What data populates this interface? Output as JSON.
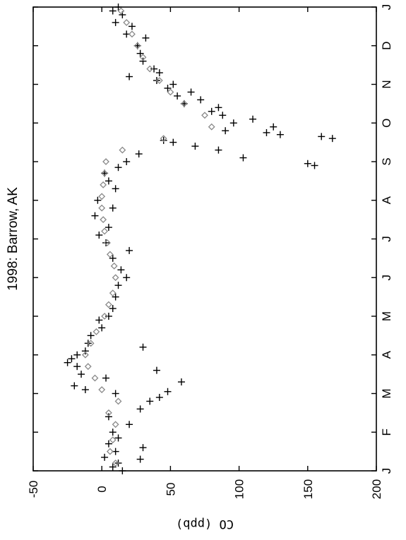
{
  "chart_data": {
    "type": "scatter",
    "title": "1998: Barrow, AK",
    "ylabel": "CO (ppb)",
    "xlabel": "",
    "orientation": "rotated-90-clockwise",
    "months": [
      "J",
      "F",
      "M",
      "A",
      "M",
      "J",
      "J",
      "A",
      "S",
      "O",
      "N",
      "D",
      "J"
    ],
    "ylim": [
      -50,
      200
    ],
    "yticks": [
      -50,
      0,
      50,
      100,
      150,
      200
    ],
    "grid": false,
    "legend": "none",
    "series": [
      {
        "marker": "plus",
        "color": "#000000",
        "points": [
          [
            0.0,
            15
          ],
          [
            0.1,
            8
          ],
          [
            0.2,
            12
          ],
          [
            0.3,
            28
          ],
          [
            0.35,
            2
          ],
          [
            0.5,
            10
          ],
          [
            0.6,
            30
          ],
          [
            0.7,
            5
          ],
          [
            0.85,
            12
          ],
          [
            1.0,
            8
          ],
          [
            1.2,
            20
          ],
          [
            1.4,
            5
          ],
          [
            1.6,
            28
          ],
          [
            1.8,
            35
          ],
          [
            1.9,
            42
          ],
          [
            2.0,
            10
          ],
          [
            2.05,
            48
          ],
          [
            2.1,
            -12
          ],
          [
            2.2,
            -20
          ],
          [
            2.3,
            58
          ],
          [
            2.4,
            3
          ],
          [
            2.5,
            -15
          ],
          [
            2.6,
            40
          ],
          [
            2.7,
            -18
          ],
          [
            2.8,
            -25
          ],
          [
            2.9,
            -22
          ],
          [
            3.0,
            -18
          ],
          [
            3.1,
            -12
          ],
          [
            3.2,
            30
          ],
          [
            3.3,
            -10
          ],
          [
            3.5,
            -8
          ],
          [
            3.7,
            0
          ],
          [
            3.9,
            -2
          ],
          [
            4.0,
            5
          ],
          [
            4.2,
            8
          ],
          [
            4.5,
            10
          ],
          [
            4.8,
            12
          ],
          [
            5.0,
            18
          ],
          [
            5.2,
            14
          ],
          [
            5.5,
            8
          ],
          [
            5.7,
            20
          ],
          [
            5.9,
            3
          ],
          [
            6.1,
            -2
          ],
          [
            6.3,
            5
          ],
          [
            6.6,
            -5
          ],
          [
            6.8,
            8
          ],
          [
            7.0,
            -3
          ],
          [
            7.3,
            10
          ],
          [
            7.5,
            5
          ],
          [
            7.7,
            2
          ],
          [
            7.85,
            12
          ],
          [
            7.9,
            155
          ],
          [
            7.95,
            150
          ],
          [
            8.0,
            18
          ],
          [
            8.1,
            103
          ],
          [
            8.2,
            27
          ],
          [
            8.3,
            85
          ],
          [
            8.4,
            68
          ],
          [
            8.5,
            52
          ],
          [
            8.55,
            45
          ],
          [
            8.6,
            168
          ],
          [
            8.65,
            160
          ],
          [
            8.7,
            130
          ],
          [
            8.75,
            120
          ],
          [
            8.8,
            90
          ],
          [
            8.9,
            125
          ],
          [
            9.0,
            96
          ],
          [
            9.1,
            110
          ],
          [
            9.2,
            88
          ],
          [
            9.3,
            80
          ],
          [
            9.4,
            85
          ],
          [
            9.5,
            60
          ],
          [
            9.6,
            72
          ],
          [
            9.7,
            55
          ],
          [
            9.8,
            65
          ],
          [
            9.9,
            48
          ],
          [
            10.0,
            52
          ],
          [
            10.1,
            40
          ],
          [
            10.2,
            20
          ],
          [
            10.3,
            42
          ],
          [
            10.4,
            38
          ],
          [
            10.6,
            30
          ],
          [
            10.8,
            28
          ],
          [
            11.0,
            26
          ],
          [
            11.2,
            32
          ],
          [
            11.3,
            18
          ],
          [
            11.5,
            22
          ],
          [
            11.6,
            10
          ],
          [
            11.8,
            15
          ],
          [
            11.9,
            8
          ],
          [
            12.0,
            12
          ]
        ]
      },
      {
        "marker": "diamond",
        "color": "#888888",
        "points": [
          [
            0.2,
            10
          ],
          [
            0.5,
            6
          ],
          [
            0.8,
            8
          ],
          [
            1.2,
            10
          ],
          [
            1.5,
            5
          ],
          [
            1.8,
            12
          ],
          [
            2.1,
            0
          ],
          [
            2.4,
            -5
          ],
          [
            2.7,
            -10
          ],
          [
            3.0,
            -12
          ],
          [
            3.3,
            -8
          ],
          [
            3.6,
            -4
          ],
          [
            4.0,
            2
          ],
          [
            4.3,
            5
          ],
          [
            4.6,
            8
          ],
          [
            5.0,
            10
          ],
          [
            5.3,
            9
          ],
          [
            5.6,
            6
          ],
          [
            5.9,
            4
          ],
          [
            6.2,
            2
          ],
          [
            6.5,
            1
          ],
          [
            6.8,
            0
          ],
          [
            7.1,
            0
          ],
          [
            7.4,
            1
          ],
          [
            7.7,
            2
          ],
          [
            8.0,
            3
          ],
          [
            8.3,
            15
          ],
          [
            8.6,
            45
          ],
          [
            8.9,
            80
          ],
          [
            9.2,
            75
          ],
          [
            9.5,
            60
          ],
          [
            9.8,
            50
          ],
          [
            10.1,
            42
          ],
          [
            10.4,
            35
          ],
          [
            10.7,
            30
          ],
          [
            11.0,
            26
          ],
          [
            11.3,
            22
          ],
          [
            11.6,
            18
          ],
          [
            11.9,
            14
          ]
        ]
      }
    ]
  }
}
